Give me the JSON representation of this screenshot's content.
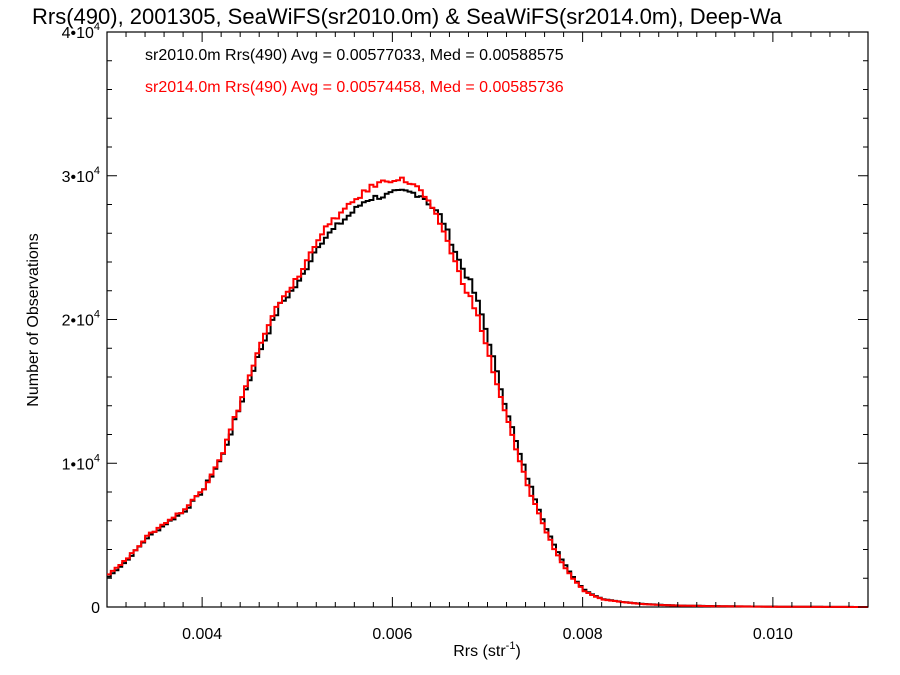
{
  "chart_data": {
    "type": "line",
    "title": "Rrs(490), 2001305, SeaWiFS(sr2010.0m) & SeaWiFS(sr2014.0m), Deep-Wa",
    "xlabel": "Rrs (str",
    "xlabel_sup": "-1",
    "xlabel_suffix": ")",
    "ylabel": "Number of Observations",
    "xlim": [
      0.003,
      0.011
    ],
    "ylim": [
      0,
      40000
    ],
    "x_ticks": [
      0.004,
      0.006,
      0.008,
      0.01
    ],
    "x_tick_labels": [
      "0.004",
      "0.006",
      "0.008",
      "0.010"
    ],
    "y_ticks": [
      0,
      10000,
      20000,
      30000,
      40000
    ],
    "y_tick_labels": [
      {
        "base": "0",
        "exp": ""
      },
      {
        "base": "1•10",
        "exp": "4"
      },
      {
        "base": "2•10",
        "exp": "4"
      },
      {
        "base": "3•10",
        "exp": "4"
      },
      {
        "base": "4•10",
        "exp": "4"
      }
    ],
    "grid": false,
    "legend": [
      {
        "text": "sr2010.0m Rrs(490) Avg = 0.00577033, Med = 0.00588575",
        "color": "#000000"
      },
      {
        "text": "sr2014.0m Rrs(490) Avg = 0.00574458, Med = 0.00585736",
        "color": "#ff0000"
      }
    ],
    "series": [
      {
        "color": "#000000",
        "x": [
          0.003,
          0.0032,
          0.0034,
          0.0036,
          0.0038,
          0.004,
          0.0042,
          0.0044,
          0.0046,
          0.0048,
          0.005,
          0.0052,
          0.0054,
          0.0055,
          0.0056,
          0.0057,
          0.0058,
          0.0059,
          0.006,
          0.0061,
          0.0062,
          0.0063,
          0.0064,
          0.0065,
          0.0066,
          0.0067,
          0.0068,
          0.0069,
          0.007,
          0.0071,
          0.0072,
          0.0073,
          0.0074,
          0.0075,
          0.0076,
          0.0077,
          0.0078,
          0.0079,
          0.008,
          0.0081,
          0.0082,
          0.0084,
          0.0086,
          0.0088,
          0.009,
          0.0095,
          0.01,
          0.0105,
          0.011
        ],
        "y": [
          2100,
          3300,
          4800,
          5800,
          6700,
          8200,
          10600,
          14400,
          18000,
          21000,
          22600,
          25200,
          26500,
          27100,
          27700,
          28300,
          28500,
          28600,
          28800,
          28900,
          28800,
          28600,
          27800,
          27100,
          25400,
          23800,
          22600,
          20800,
          18400,
          15700,
          13400,
          11000,
          9000,
          7200,
          5500,
          4000,
          2900,
          1900,
          1200,
          800,
          550,
          350,
          220,
          150,
          100,
          50,
          25,
          10,
          0
        ]
      },
      {
        "color": "#ff0000",
        "x": [
          0.003,
          0.0032,
          0.0034,
          0.0036,
          0.0038,
          0.004,
          0.0042,
          0.0044,
          0.0046,
          0.0048,
          0.005,
          0.0052,
          0.0054,
          0.0055,
          0.0056,
          0.0057,
          0.0058,
          0.0059,
          0.006,
          0.0061,
          0.0062,
          0.0063,
          0.0064,
          0.0065,
          0.0066,
          0.0067,
          0.0068,
          0.0069,
          0.007,
          0.0071,
          0.0072,
          0.0073,
          0.0074,
          0.0075,
          0.0076,
          0.0077,
          0.0078,
          0.0079,
          0.008,
          0.0081,
          0.0082,
          0.0084,
          0.0086,
          0.0088,
          0.009,
          0.0095,
          0.01,
          0.0105,
          0.011
        ],
        "y": [
          2300,
          3400,
          4900,
          5900,
          6800,
          8300,
          10800,
          14600,
          18300,
          21300,
          23000,
          25700,
          27200,
          27700,
          28400,
          28900,
          29400,
          29600,
          29800,
          29700,
          29400,
          28800,
          27600,
          26500,
          24700,
          22900,
          21500,
          19800,
          17400,
          14900,
          12800,
          10500,
          8500,
          6800,
          5200,
          3800,
          2700,
          1800,
          1100,
          750,
          520,
          340,
          210,
          140,
          95,
          45,
          20,
          8,
          0
        ]
      }
    ]
  }
}
